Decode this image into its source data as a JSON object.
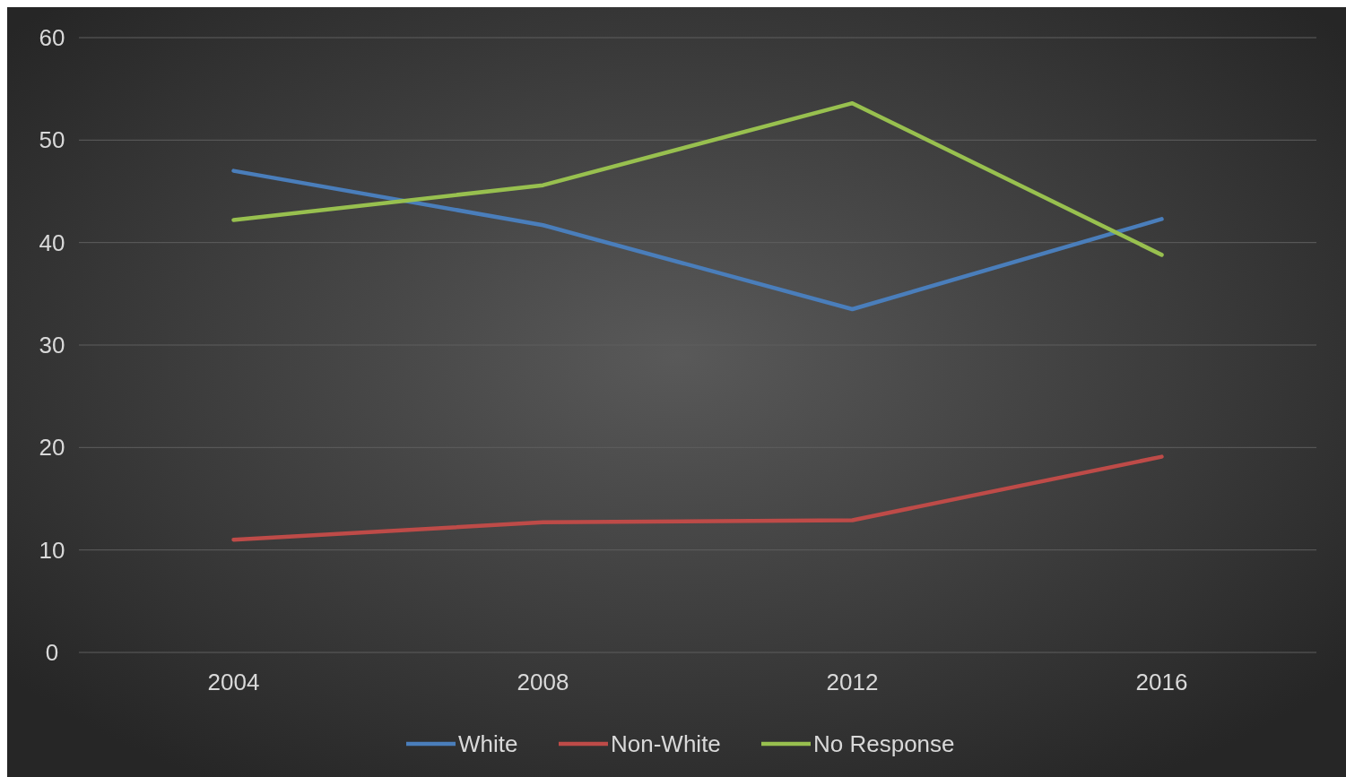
{
  "chart_data": {
    "type": "line",
    "categories": [
      "2004",
      "2008",
      "2012",
      "2016"
    ],
    "series": [
      {
        "name": "White",
        "color": "#4a7ebb",
        "values": [
          47.0,
          41.7,
          33.5,
          42.3
        ]
      },
      {
        "name": "Non-White",
        "color": "#be4b48",
        "values": [
          11.0,
          12.7,
          12.9,
          19.1
        ]
      },
      {
        "name": "No Response",
        "color": "#98c04f",
        "values": [
          42.2,
          45.6,
          53.6,
          38.8
        ]
      }
    ],
    "ylim": [
      0,
      60
    ],
    "yticks": [
      0,
      10,
      20,
      30,
      40,
      50,
      60
    ],
    "grid": "y",
    "legend": "bottom",
    "marker": "none",
    "line_style": "solid"
  }
}
